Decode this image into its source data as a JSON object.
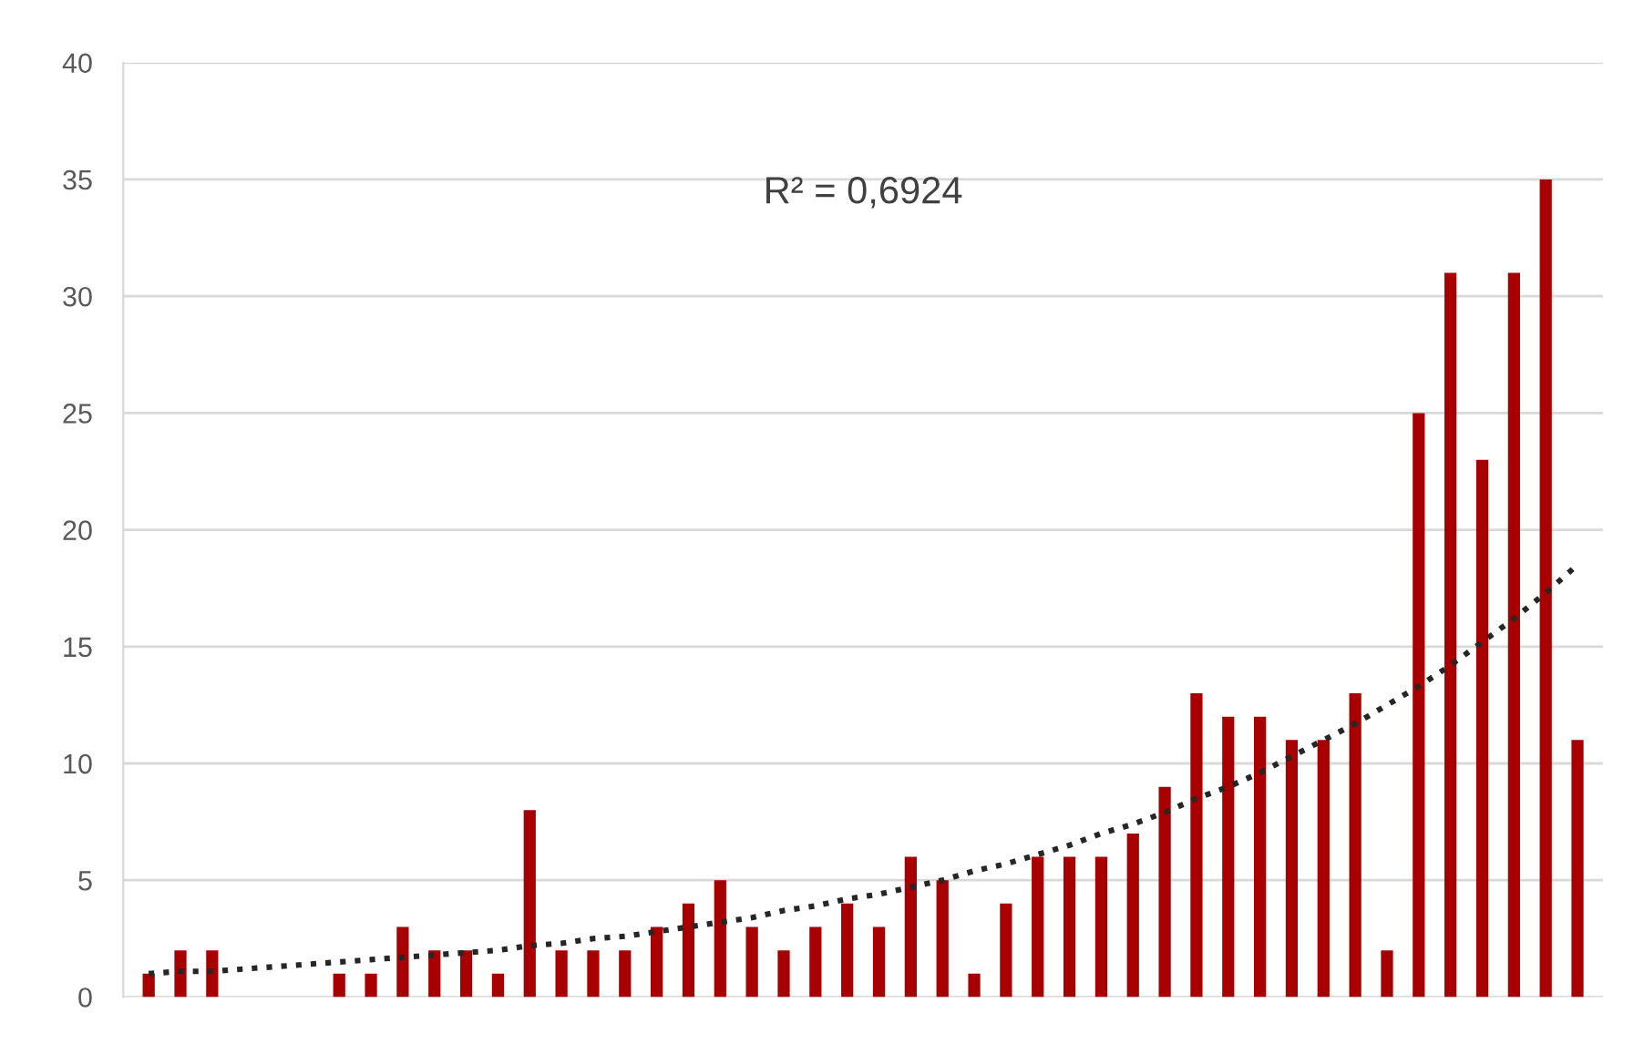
{
  "chart_data": {
    "type": "bar",
    "categories": [
      null,
      null,
      null,
      null,
      null,
      null,
      null,
      null,
      null,
      null,
      null,
      null,
      null,
      null,
      null,
      null,
      null,
      null,
      null,
      null,
      null,
      null,
      null,
      null,
      null,
      null,
      null,
      null,
      null,
      null,
      null,
      null,
      null,
      null,
      null,
      null,
      null,
      null,
      null,
      null,
      null,
      null,
      null,
      null,
      null,
      null
    ],
    "series": [
      {
        "color": "#a80000",
        "values": [
          1,
          2,
          2,
          0,
          0,
          0,
          1,
          1,
          3,
          2,
          2,
          1,
          8,
          2,
          2,
          2,
          3,
          4,
          5,
          3,
          2,
          3,
          4,
          3,
          6,
          5,
          1,
          4,
          6,
          6,
          6,
          7,
          9,
          13,
          12,
          12,
          11,
          11,
          13,
          2,
          25,
          31,
          23,
          31,
          35,
          11
        ]
      },
      {
        "type": "line",
        "color": "#262626",
        "line_style": "dotted",
        "marker": "none",
        "values": [
          1.0,
          1.1,
          1.1,
          1.2,
          1.3,
          1.4,
          1.5,
          1.6,
          1.7,
          1.8,
          1.9,
          2.0,
          2.2,
          2.3,
          2.5,
          2.6,
          2.8,
          3.0,
          3.2,
          3.4,
          3.7,
          3.9,
          4.2,
          4.4,
          4.7,
          5.0,
          5.4,
          5.7,
          6.1,
          6.5,
          7.0,
          7.4,
          7.9,
          8.5,
          9.0,
          9.6,
          10.3,
          11.0,
          11.7,
          12.5,
          13.3,
          14.2,
          15.2,
          16.2,
          17.3,
          18.5
        ]
      }
    ],
    "ylim": [
      0,
      40
    ],
    "yticks": [
      0,
      5,
      10,
      15,
      20,
      25,
      30,
      35,
      40
    ],
    "grid": "y",
    "legend": false,
    "annotations": [
      "R² = 0,6924"
    ]
  }
}
